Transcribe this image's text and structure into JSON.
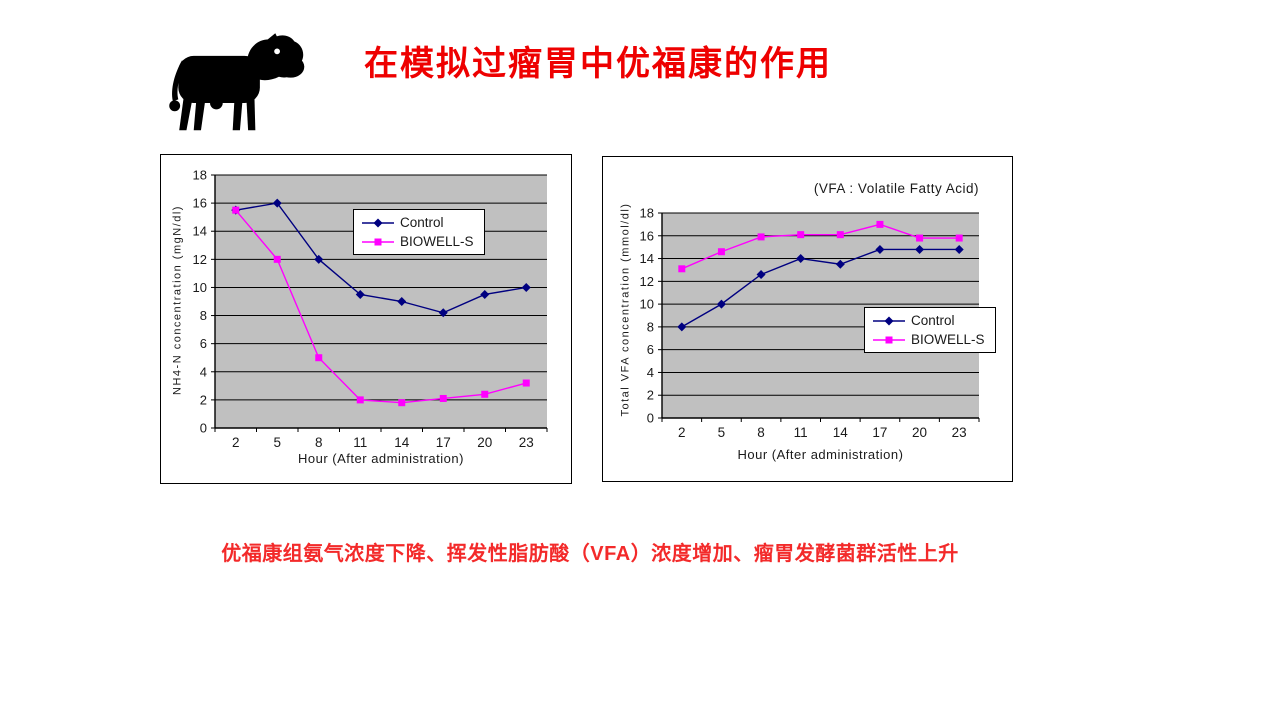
{
  "title": "在模拟过瘤胃中优福康的作用",
  "footnote": "优福康组氨气浓度下降、挥发性脂肪酸（VFA）浓度增加、瘤胃发酵菌群活性上升",
  "colors": {
    "title_red": "#EE0000",
    "footnote_red": "#F32A2A",
    "control_navy": "#000080",
    "biowell_magenta": "#FF00FF",
    "plot_background": "#C0C0C0",
    "gridline": "#000000"
  },
  "icons": {
    "cow": "cow-silhouette-icon"
  },
  "chart_data": [
    {
      "type": "line",
      "title": "",
      "categories": [
        "2",
        "5",
        "8",
        "11",
        "14",
        "17",
        "20",
        "23"
      ],
      "series": [
        {
          "name": "Control",
          "marker": "diamond",
          "color": "#000080",
          "values": [
            15.5,
            16,
            12,
            9.5,
            9,
            8.2,
            9.5,
            10
          ]
        },
        {
          "name": "BIOWELL-S",
          "marker": "square",
          "color": "#FF00FF",
          "values": [
            15.5,
            12,
            5,
            2,
            1.8,
            2.1,
            2.4,
            3.2
          ]
        }
      ],
      "xlabel": "Hour (After administration)",
      "ylabel": "NH4-N concentration (mgN/dl)",
      "ylim": [
        0,
        18
      ],
      "ytick_step": 2,
      "grid": true,
      "plot_bg": "#C0C0C0",
      "legend_position": "upper-center",
      "annotation": ""
    },
    {
      "type": "line",
      "title": "",
      "categories": [
        "2",
        "5",
        "8",
        "11",
        "14",
        "17",
        "20",
        "23"
      ],
      "series": [
        {
          "name": "Control",
          "marker": "diamond",
          "color": "#000080",
          "values": [
            8,
            10,
            12.6,
            14,
            13.5,
            14.8,
            14.8,
            14.8
          ]
        },
        {
          "name": "BIOWELL-S",
          "marker": "square",
          "color": "#FF00FF",
          "values": [
            13.1,
            14.6,
            15.9,
            16.1,
            16.1,
            17,
            15.8,
            15.8
          ]
        }
      ],
      "xlabel": "Hour (After administration)",
      "ylabel": "Total VFA concentration (mmol/dl)",
      "ylim": [
        0,
        18
      ],
      "ytick_step": 2,
      "grid": true,
      "plot_bg": "#C0C0C0",
      "legend_position": "middle-right",
      "annotation": "(VFA : Volatile Fatty Acid)"
    }
  ]
}
